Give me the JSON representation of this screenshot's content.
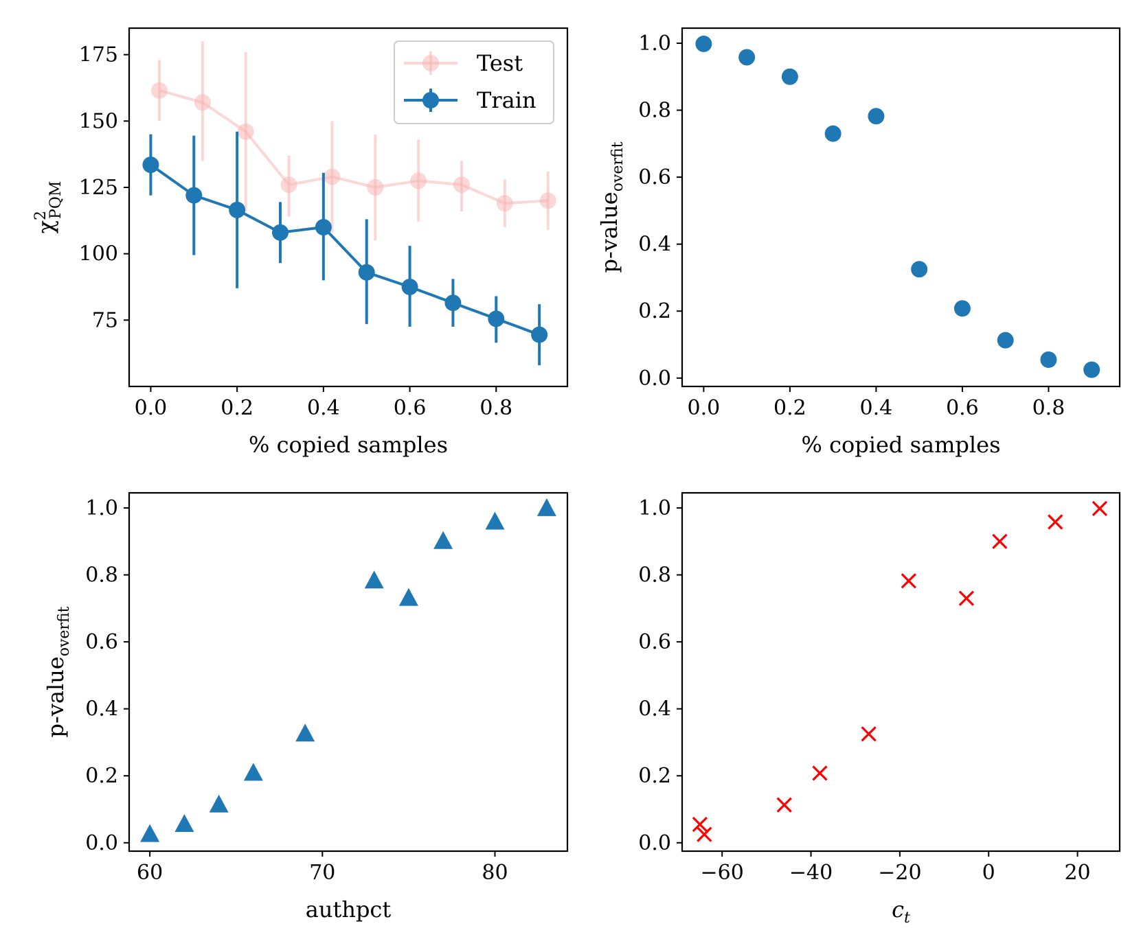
{
  "chart_data": [
    {
      "type": "line",
      "panel": "top-left",
      "xlabel": "% copied samples",
      "ylabel_main": "χ",
      "ylabel_sup": "2",
      "ylabel_sub": "PQM",
      "xlim": [
        -0.05,
        0.965
      ],
      "ylim": [
        50,
        185
      ],
      "xticks": [
        "0.0",
        "0.2",
        "0.4",
        "0.6",
        "0.8"
      ],
      "xtick_values": [
        0,
        0.2,
        0.4,
        0.6,
        0.8
      ],
      "yticks": [
        "75",
        "100",
        "125",
        "150",
        "175"
      ],
      "ytick_values": [
        75,
        100,
        125,
        150,
        175
      ],
      "legend": {
        "position": "top-right",
        "entries": [
          "Test",
          "Train"
        ]
      },
      "series": [
        {
          "name": "Test",
          "color": "#f7b6b6",
          "x": [
            0.02,
            0.12,
            0.22,
            0.32,
            0.42,
            0.52,
            0.62,
            0.72,
            0.82,
            0.92
          ],
          "y": [
            161.5,
            157,
            146,
            126,
            129,
            125,
            127.5,
            126,
            119,
            120
          ],
          "err_low": [
            150,
            135,
            116,
            114,
            108,
            105,
            112,
            116,
            110,
            109
          ],
          "err_high": [
            173,
            180,
            176,
            137,
            150,
            145,
            143,
            135,
            128,
            131
          ]
        },
        {
          "name": "Train",
          "color": "#1f77b4",
          "x": [
            0.0,
            0.1,
            0.2,
            0.3,
            0.4,
            0.5,
            0.6,
            0.7,
            0.8,
            0.9
          ],
          "y": [
            133.5,
            122,
            116.5,
            108,
            110,
            93,
            87.5,
            81.5,
            75.5,
            69.5
          ],
          "err_low": [
            122,
            99.5,
            87,
            96.5,
            90,
            73.5,
            72.5,
            72.5,
            66.5,
            58
          ],
          "err_high": [
            145,
            144.5,
            146,
            119.5,
            130.5,
            113,
            103,
            90.5,
            84,
            81
          ]
        }
      ]
    },
    {
      "type": "scatter",
      "panel": "top-right",
      "xlabel": "% copied samples",
      "ylabel_main": "p-value",
      "ylabel_sub": "overfit",
      "xlim": [
        -0.05,
        0.965
      ],
      "ylim": [
        -0.025,
        1.045
      ],
      "xticks": [
        "0.0",
        "0.2",
        "0.4",
        "0.6",
        "0.8"
      ],
      "xtick_values": [
        0,
        0.2,
        0.4,
        0.6,
        0.8
      ],
      "yticks": [
        "0.0",
        "0.2",
        "0.4",
        "0.6",
        "0.8",
        "1.0"
      ],
      "ytick_values": [
        0,
        0.2,
        0.4,
        0.6,
        0.8,
        1.0
      ],
      "marker": "circle",
      "color": "#1f77b4",
      "x": [
        0.0,
        0.1,
        0.2,
        0.3,
        0.4,
        0.5,
        0.6,
        0.7,
        0.8,
        0.9
      ],
      "y": [
        0.998,
        0.958,
        0.9,
        0.73,
        0.782,
        0.325,
        0.208,
        0.113,
        0.055,
        0.025
      ]
    },
    {
      "type": "scatter",
      "panel": "bottom-left",
      "xlabel": "authpct",
      "ylabel_main": "p-value",
      "ylabel_sub": "overfit",
      "xlim": [
        58.8,
        84.2
      ],
      "ylim": [
        -0.025,
        1.045
      ],
      "xticks": [
        "60",
        "70",
        "80"
      ],
      "xtick_values": [
        60,
        70,
        80
      ],
      "yticks": [
        "0.0",
        "0.2",
        "0.4",
        "0.6",
        "0.8",
        "1.0"
      ],
      "ytick_values": [
        0,
        0.2,
        0.4,
        0.6,
        0.8,
        1.0
      ],
      "marker": "triangle",
      "color": "#1f77b4",
      "x": [
        60,
        62,
        64,
        66,
        69,
        73,
        75,
        77,
        80,
        83
      ],
      "y": [
        0.025,
        0.055,
        0.113,
        0.208,
        0.325,
        0.782,
        0.73,
        0.9,
        0.958,
        0.998
      ]
    },
    {
      "type": "scatter",
      "panel": "bottom-right",
      "xlabel_main": "c",
      "xlabel_sub": "t",
      "ylabel_main": "",
      "xlim": [
        -69,
        29.5
      ],
      "ylim": [
        -0.025,
        1.045
      ],
      "xticks": [
        "−60",
        "−40",
        "−20",
        "0",
        "20"
      ],
      "xtick_values": [
        -60,
        -40,
        -20,
        0,
        20
      ],
      "yticks": [
        "0.0",
        "0.2",
        "0.4",
        "0.6",
        "0.8",
        "1.0"
      ],
      "ytick_values": [
        0,
        0.2,
        0.4,
        0.6,
        0.8,
        1.0
      ],
      "marker": "x",
      "color": "#ff0000",
      "x": [
        -65,
        -64,
        -46,
        -38,
        -27,
        -18,
        -5,
        2.5,
        15,
        25
      ],
      "y": [
        0.055,
        0.025,
        0.113,
        0.208,
        0.325,
        0.782,
        0.73,
        0.9,
        0.958,
        0.998
      ]
    }
  ]
}
